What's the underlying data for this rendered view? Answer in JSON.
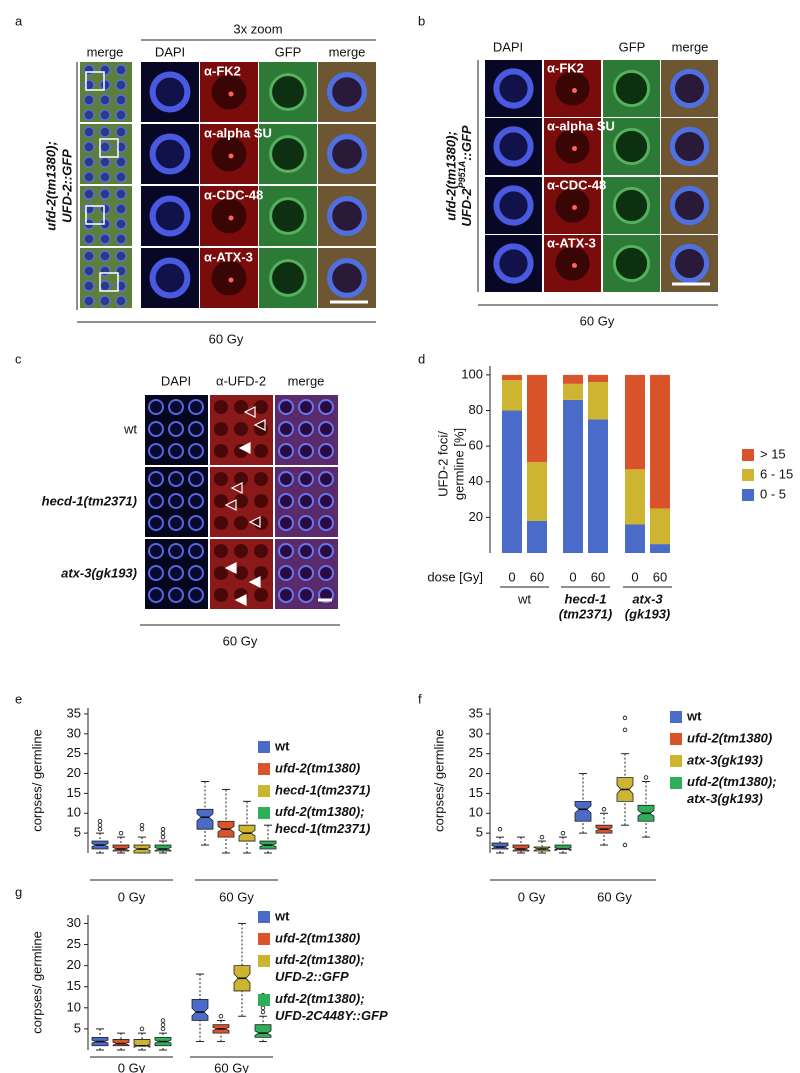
{
  "panel_labels": [
    "a",
    "b",
    "c",
    "d",
    "e",
    "f",
    "g"
  ],
  "panel_a": {
    "zoom_label": "3x zoom",
    "columns": [
      "merge",
      "DAPI",
      "GFP",
      "merge"
    ],
    "stains": [
      "α-FK2",
      "α-alpha SU",
      "α-CDC-48",
      "α-ATX-3"
    ],
    "strain": [
      "ufd-2(tm1380);",
      "UFD-2::GFP"
    ],
    "dose": "60 Gy"
  },
  "panel_b": {
    "columns": [
      "DAPI",
      "GFP",
      "merge"
    ],
    "stains": [
      "α-FK2",
      "α-alpha SU",
      "α-CDC-48",
      "α-ATX-3"
    ],
    "strain": {
      "line1": "ufd-2(tm1380);",
      "line2": "UFD-2",
      "sup": "P951A",
      "line2_end": "::GFP"
    },
    "dose": "60 Gy"
  },
  "panel_c": {
    "columns": [
      "DAPI",
      "α-UFD-2",
      "merge"
    ],
    "rows": [
      "wt",
      "hecd-1(tm2371)",
      "atx-3(gk193)"
    ],
    "dose": "60 Gy"
  },
  "chart_data": [
    {
      "type": "bar",
      "stacked": true,
      "ylabel": [
        "UFD-2 foci/",
        "germline [%]"
      ],
      "xlabel": "dose [Gy]",
      "categories": [
        "0",
        "60",
        "0",
        "60",
        "0",
        "60"
      ],
      "groups": [
        [
          "wt"
        ],
        [
          "hecd-1",
          "(tm2371)"
        ],
        [
          "atx-3",
          "(gk193)"
        ]
      ],
      "series": [
        {
          "name": "0 - 5",
          "color": "#4a6cc8",
          "values": [
            80,
            18,
            86,
            75,
            16,
            5
          ]
        },
        {
          "name": "6 - 15",
          "color": "#cdb531",
          "values": [
            17,
            33,
            9,
            21,
            31,
            20
          ]
        },
        {
          "name": "> 15",
          "color": "#d9532b",
          "values": [
            3,
            49,
            5,
            4,
            53,
            75
          ]
        }
      ],
      "ylim": [
        0,
        105
      ],
      "yticks": [
        20,
        40,
        60,
        80,
        100
      ],
      "legend": "right"
    },
    {
      "type": "box",
      "ylabel": "corpses/ germline",
      "categories": [
        "0 Gy",
        "60 Gy"
      ],
      "ylim": [
        0,
        36.5
      ],
      "yticks": [
        5,
        10,
        15,
        20,
        25,
        30,
        35
      ],
      "legend": "right",
      "series": [
        {
          "name": "wt",
          "color": "#4a6cc8",
          "boxes": [
            {
              "low": 0,
              "q1": 1,
              "median": 2,
              "q3": 3,
              "high": 5,
              "outliers": [
                6,
                7,
                8
              ]
            },
            {
              "low": 2,
              "q1": 6,
              "median": 9,
              "q3": 11,
              "high": 18,
              "outliers": []
            }
          ]
        },
        {
          "name": "ufd-2(tm1380)",
          "color": "#d9532b",
          "boxes": [
            {
              "low": 0,
              "q1": 0.5,
              "median": 1,
              "q3": 2,
              "high": 4,
              "outliers": [
                5
              ]
            },
            {
              "low": 0,
              "q1": 4,
              "median": 6,
              "q3": 8,
              "high": 16,
              "outliers": []
            }
          ]
        },
        {
          "name": "hecd-1(tm2371)",
          "color": "#cdb531",
          "boxes": [
            {
              "low": 0,
              "q1": 0,
              "median": 1,
              "q3": 2,
              "high": 4,
              "outliers": [
                6,
                7
              ]
            },
            {
              "low": 0,
              "q1": 3,
              "median": 5,
              "q3": 7,
              "high": 13,
              "outliers": []
            }
          ]
        },
        {
          "name": "ufd-2(tm1380); hecd-1(tm2371)",
          "color": "#2fae5a",
          "boxes": [
            {
              "low": 0,
              "q1": 0.5,
              "median": 1,
              "q3": 2,
              "high": 3,
              "outliers": [
                4,
                5,
                6
              ]
            },
            {
              "low": 0,
              "q1": 1,
              "median": 2,
              "q3": 3,
              "high": 7,
              "outliers": []
            }
          ]
        }
      ]
    },
    {
      "type": "box",
      "ylabel": "corpses/ germline",
      "categories": [
        "0 Gy",
        "60 Gy"
      ],
      "ylim": [
        0,
        36.5
      ],
      "yticks": [
        5,
        10,
        15,
        20,
        25,
        30,
        35
      ],
      "legend": "right",
      "series": [
        {
          "name": "wt",
          "color": "#4a6cc8",
          "boxes": [
            {
              "low": 0,
              "q1": 1,
              "median": 1.5,
              "q3": 2.5,
              "high": 4,
              "outliers": [
                6
              ]
            },
            {
              "low": 5,
              "q1": 8,
              "median": 11,
              "q3": 13,
              "high": 20,
              "outliers": []
            }
          ]
        },
        {
          "name": "ufd-2(tm1380)",
          "color": "#d9532b",
          "boxes": [
            {
              "low": 0,
              "q1": 0.5,
              "median": 1,
              "q3": 2,
              "high": 4,
              "outliers": []
            },
            {
              "low": 2,
              "q1": 5,
              "median": 6,
              "q3": 7,
              "high": 10,
              "outliers": [
                11
              ]
            }
          ]
        },
        {
          "name": "atx-3(gk193)",
          "color": "#cdb531",
          "boxes": [
            {
              "low": 0,
              "q1": 0.5,
              "median": 1,
              "q3": 1.5,
              "high": 3,
              "outliers": [
                4
              ]
            },
            {
              "low": 7,
              "q1": 13,
              "median": 16,
              "q3": 19,
              "high": 25,
              "outliers": [
                2,
                31,
                34
              ]
            }
          ]
        },
        {
          "name": "ufd-2(tm1380); atx-3(gk193)",
          "color": "#2fae5a",
          "boxes": [
            {
              "low": 0,
              "q1": 1,
              "median": 1,
              "q3": 2,
              "high": 4,
              "outliers": [
                5
              ]
            },
            {
              "low": 4,
              "q1": 8,
              "median": 10,
              "q3": 12,
              "high": 18,
              "outliers": [
                19
              ]
            }
          ]
        }
      ]
    },
    {
      "type": "box",
      "ylabel": "corpses/ germline",
      "categories": [
        "0 Gy",
        "60 Gy"
      ],
      "ylim": [
        0,
        32
      ],
      "yticks": [
        5,
        10,
        15,
        20,
        25,
        30
      ],
      "legend": "right",
      "series": [
        {
          "name": "wt",
          "color": "#4a6cc8",
          "boxes": [
            {
              "low": 0,
              "q1": 1,
              "median": 2,
              "q3": 3,
              "high": 5,
              "outliers": []
            },
            {
              "low": 2,
              "q1": 7,
              "median": 9,
              "q3": 12,
              "high": 18,
              "outliers": []
            }
          ]
        },
        {
          "name": "ufd-2(tm1380)",
          "color": "#d9532b",
          "boxes": [
            {
              "low": 0,
              "q1": 1,
              "median": 1.5,
              "q3": 2.5,
              "high": 4,
              "outliers": []
            },
            {
              "low": 2,
              "q1": 4,
              "median": 5,
              "q3": 6,
              "high": 7,
              "outliers": [
                8
              ]
            }
          ]
        },
        {
          "name": "ufd-2(tm1380); UFD-2::GFP",
          "color": "#cdb531",
          "boxes": [
            {
              "low": 0,
              "q1": 1,
              "median": 1,
              "q3": 2.5,
              "high": 4,
              "outliers": [
                5
              ]
            },
            {
              "low": 8,
              "q1": 14,
              "median": 17,
              "q3": 20,
              "high": 30,
              "outliers": []
            }
          ]
        },
        {
          "name": "ufd-2(tm1380); UFD-2C448Y::GFP",
          "color": "#2fae5a",
          "boxes": [
            {
              "low": 0,
              "q1": 1,
              "median": 2,
              "q3": 3,
              "high": 4,
              "outliers": [
                5,
                6,
                7
              ]
            },
            {
              "low": 2,
              "q1": 3,
              "median": 4,
              "q3": 6,
              "high": 8,
              "outliers": [
                9,
                10,
                11,
                12,
                13
              ]
            }
          ]
        }
      ]
    }
  ]
}
